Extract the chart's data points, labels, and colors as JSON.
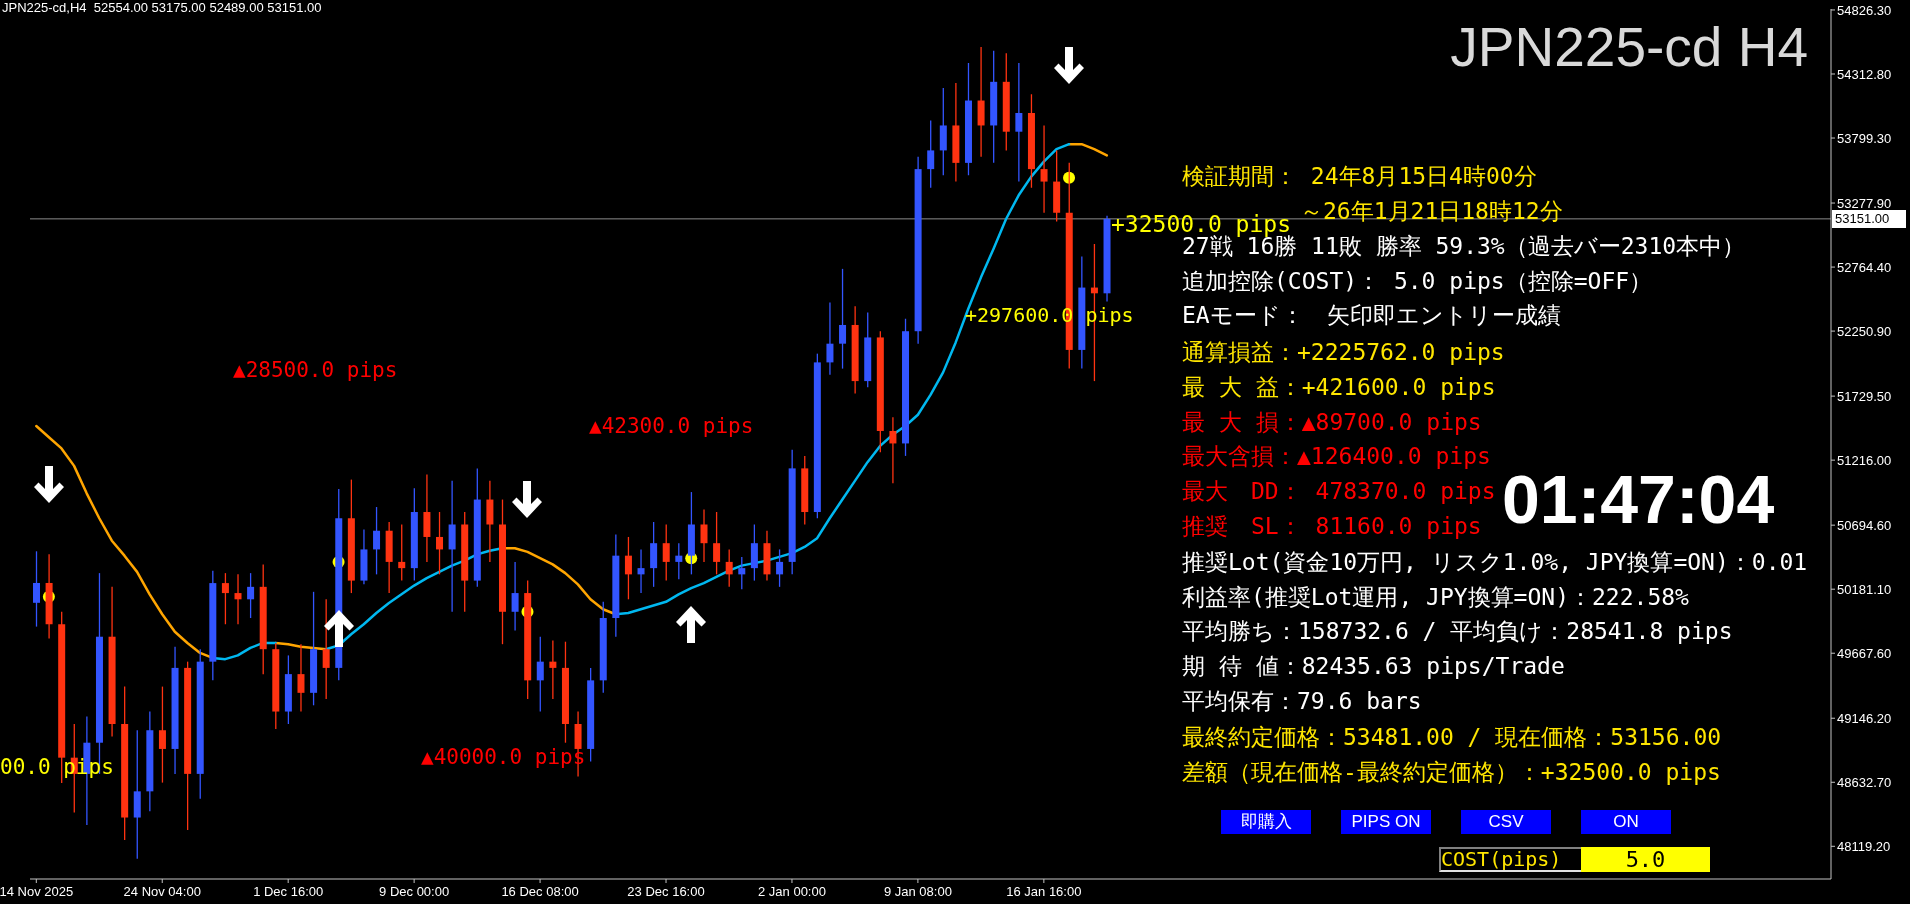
{
  "chart_data": {
    "type": "candlestick",
    "title": "JPN225-cd H4",
    "subtitle": "JPN225-cd,H4  52554.00 53175.00 52489.00 53151.00",
    "categories": [
      "14 Nov 2025",
      null,
      null,
      null,
      null,
      null,
      null,
      null,
      null,
      null,
      "24 Nov 04:00",
      null,
      null,
      null,
      null,
      null,
      null,
      null,
      null,
      null,
      "1 Dec 16:00",
      null,
      null,
      null,
      null,
      null,
      null,
      null,
      null,
      null,
      "9 Dec 00:00",
      null,
      null,
      null,
      null,
      null,
      null,
      null,
      null,
      null,
      "16 Dec 08:00",
      null,
      null,
      null,
      null,
      null,
      null,
      null,
      null,
      null,
      "23 Dec 16:00",
      null,
      null,
      null,
      null,
      null,
      null,
      null,
      null,
      null,
      "2 Jan 00:00",
      null,
      null,
      null,
      null,
      null,
      null,
      null,
      null,
      null,
      "9 Jan 08:00",
      null,
      null,
      null,
      null,
      null,
      null,
      null,
      null,
      null,
      "16 Jan 16:00",
      null,
      null,
      null,
      null,
      null,
      null,
      null,
      null,
      null,
      null,
      null,
      null,
      null,
      null,
      null,
      null,
      null,
      null,
      null,
      null,
      null,
      null,
      null,
      null,
      null,
      null,
      null,
      null,
      null,
      null,
      null,
      null,
      null,
      null,
      null,
      null,
      null,
      null,
      null,
      null,
      null,
      null,
      null,
      null,
      null,
      null,
      null,
      null,
      null,
      null,
      null,
      null,
      null,
      null,
      null,
      null,
      null,
      null,
      null,
      null,
      null,
      null
    ],
    "ohlc": [
      [
        50072,
        50485,
        49881,
        50231
      ],
      [
        50231,
        50461,
        49786,
        49900
      ],
      [
        49900,
        50000,
        48627,
        48830
      ],
      [
        48830,
        49100,
        48390,
        48700
      ],
      [
        48700,
        49160,
        48290,
        48950
      ],
      [
        48950,
        50310,
        48700,
        49800
      ],
      [
        49800,
        50200,
        49000,
        49100
      ],
      [
        49100,
        49400,
        48170,
        48350
      ],
      [
        48350,
        49050,
        48020,
        48560
      ],
      [
        48560,
        49200,
        48400,
        49050
      ],
      [
        49050,
        49400,
        48630,
        48900
      ],
      [
        48900,
        49720,
        48700,
        49550
      ],
      [
        49550,
        49600,
        48250,
        48700
      ],
      [
        48700,
        49700,
        48500,
        49600
      ],
      [
        49600,
        50330,
        49450,
        50230
      ],
      [
        50230,
        50310,
        49900,
        50150
      ],
      [
        50150,
        50300,
        49900,
        50100
      ],
      [
        50100,
        50310,
        49950,
        50200
      ],
      [
        50200,
        50380,
        49500,
        49700
      ],
      [
        49700,
        49750,
        49060,
        49200
      ],
      [
        49200,
        49650,
        49100,
        49500
      ],
      [
        49500,
        49740,
        49200,
        49350
      ],
      [
        49350,
        50160,
        49250,
        49700
      ],
      [
        49700,
        50100,
        49300,
        49550
      ],
      [
        49550,
        50985,
        49450,
        50750
      ],
      [
        50750,
        51060,
        50150,
        50250
      ],
      [
        50250,
        50660,
        50220,
        50500
      ],
      [
        50500,
        50840,
        50300,
        50650
      ],
      [
        50650,
        50720,
        50150,
        50400
      ],
      [
        50400,
        50700,
        50250,
        50350
      ],
      [
        50350,
        50990,
        50250,
        50800
      ],
      [
        50800,
        51100,
        50400,
        50600
      ],
      [
        50600,
        50800,
        50300,
        50500
      ],
      [
        50500,
        51050,
        50000,
        50700
      ],
      [
        50700,
        50800,
        50000,
        50250
      ],
      [
        50250,
        51150,
        50200,
        50900
      ],
      [
        50900,
        51050,
        50400,
        50700
      ],
      [
        50700,
        50900,
        49740,
        50000
      ],
      [
        50000,
        50400,
        49850,
        50150
      ],
      [
        50150,
        50250,
        49300,
        49450
      ],
      [
        49450,
        49800,
        49200,
        49600
      ],
      [
        49600,
        49770,
        49300,
        49550
      ],
      [
        49550,
        49760,
        48950,
        49100
      ],
      [
        49100,
        49200,
        48680,
        48900
      ],
      [
        48900,
        49550,
        48800,
        49450
      ],
      [
        49450,
        50080,
        49350,
        49950
      ],
      [
        49950,
        50620,
        49800,
        50450
      ],
      [
        50450,
        50600,
        50100,
        50300
      ],
      [
        50300,
        50500,
        50150,
        50350
      ],
      [
        50350,
        50720,
        50200,
        50550
      ],
      [
        50550,
        50700,
        50250,
        50400
      ],
      [
        50400,
        50550,
        50260,
        50450
      ],
      [
        50450,
        50960,
        50300,
        50700
      ],
      [
        50700,
        50820,
        50400,
        50550
      ],
      [
        50550,
        50800,
        50300,
        50400
      ],
      [
        50400,
        50500,
        50200,
        50300
      ],
      [
        50300,
        50440,
        50180,
        50350
      ],
      [
        50350,
        50700,
        50250,
        50550
      ],
      [
        50550,
        50650,
        50250,
        50300
      ],
      [
        50300,
        50500,
        50200,
        50400
      ],
      [
        50400,
        51300,
        50300,
        51150
      ],
      [
        51150,
        51250,
        50700,
        50800
      ],
      [
        50800,
        52070,
        50750,
        52000
      ],
      [
        52000,
        52480,
        51900,
        52150
      ],
      [
        52150,
        52750,
        51950,
        52300
      ],
      [
        52300,
        52450,
        51750,
        51850
      ],
      [
        51850,
        52400,
        51800,
        52200
      ],
      [
        52200,
        52250,
        51280,
        51450
      ],
      [
        51450,
        51560,
        51030,
        51350
      ],
      [
        51350,
        52350,
        51250,
        52250
      ],
      [
        52250,
        53650,
        52150,
        53550
      ],
      [
        53550,
        53940,
        53400,
        53700
      ],
      [
        53700,
        54200,
        53500,
        53900
      ],
      [
        53900,
        54240,
        53450,
        53600
      ],
      [
        53600,
        54400,
        53500,
        54100
      ],
      [
        54100,
        54530,
        53650,
        53900
      ],
      [
        53900,
        54500,
        53600,
        54250
      ],
      [
        54250,
        54480,
        53700,
        53850
      ],
      [
        53850,
        54400,
        53450,
        54000
      ],
      [
        54000,
        54150,
        53400,
        53550
      ],
      [
        53550,
        53900,
        53200,
        53450
      ],
      [
        53450,
        53700,
        53130,
        53200
      ],
      [
        53200,
        53600,
        51950,
        52100
      ],
      [
        52100,
        52850,
        51950,
        52600
      ],
      [
        52600,
        52950,
        51850,
        52554
      ],
      [
        52554,
        53175,
        52489,
        53151
      ],
      null,
      null,
      null,
      null,
      null,
      null,
      null,
      null,
      null,
      null,
      null,
      null,
      null,
      null,
      null,
      null,
      null,
      null,
      null,
      null,
      null,
      null,
      null,
      null,
      null,
      null,
      null,
      null,
      null,
      null,
      null,
      null,
      null,
      null,
      null,
      null,
      null,
      null,
      null,
      null,
      null,
      null,
      null,
      null,
      null,
      null,
      null,
      null,
      null,
      null,
      null,
      null,
      null,
      null,
      null,
      null,
      null
    ],
    "colors": [
      "#3355ff",
      "#ff3311",
      "#ff3311",
      "#ff3311",
      "#3355ff",
      "#3355ff",
      "#ff3311",
      "#ff3311",
      "#3355ff",
      "#3355ff",
      "#ff3311",
      "#3355ff",
      "#ff3311",
      "#3355ff",
      "#3355ff",
      "#ff3311",
      "#ff3311",
      "#3355ff",
      "#ff3311",
      "#ff3311",
      "#3355ff",
      "#ff3311",
      "#3355ff",
      "#ff3311",
      "#3355ff",
      "#ff3311",
      "#3355ff",
      "#3355ff",
      "#ff3311",
      "#ff3311",
      "#3355ff",
      "#ff3311",
      "#ff3311",
      "#3355ff",
      "#ff3311",
      "#3355ff",
      "#ff3311",
      "#ff3311",
      "#3355ff",
      "#ff3311",
      "#3355ff",
      "#ff3311",
      "#ff3311",
      "#ff3311",
      "#3355ff",
      "#3355ff",
      "#3355ff",
      "#ff3311",
      "#3355ff",
      "#3355ff",
      "#ff3311",
      "#3355ff",
      "#3355ff",
      "#ff3311",
      "#ff3311",
      "#ff3311",
      "#3355ff",
      "#3355ff",
      "#ff3311",
      "#3355ff",
      "#3355ff",
      "#ff3311",
      "#3355ff",
      "#3355ff",
      "#3355ff",
      "#ff3311",
      "#3355ff",
      "#ff3311",
      "#ff3311",
      "#3355ff",
      "#3355ff",
      "#3355ff",
      "#3355ff",
      "#ff3311",
      "#3355ff",
      "#ff3311",
      "#3355ff",
      "#ff3311",
      "#3355ff",
      "#ff3311",
      "#ff3311",
      "#ff3311",
      "#ff3311",
      "#3355ff",
      "#ff3311",
      "#3355ff",
      null,
      null,
      null,
      null,
      null,
      null,
      null,
      null,
      null,
      null,
      null,
      null,
      null,
      null,
      null,
      null,
      null,
      null,
      null,
      null,
      null,
      null,
      null,
      null,
      null,
      null,
      null,
      null,
      null,
      null,
      null,
      null,
      null,
      null,
      null,
      null,
      null,
      null,
      null,
      null,
      null,
      null,
      null,
      null,
      null,
      null,
      null,
      null,
      null,
      null,
      null,
      null,
      null,
      null,
      null,
      null,
      null
    ],
    "series": [
      {
        "type": "line",
        "color": "#ffa500",
        "values": [
          51490,
          51400,
          51310,
          51170,
          50950,
          50750,
          50570,
          50450,
          50320,
          50140,
          49980,
          49840,
          49750,
          49670,
          49630,
          null,
          null,
          null,
          null,
          49750,
          49740,
          49720,
          49710,
          49700,
          null,
          null,
          null,
          null,
          null,
          null,
          null,
          null,
          null,
          null,
          null,
          null,
          null,
          50510,
          50510,
          50480,
          50430,
          50380,
          50310,
          50220,
          50100,
          50020,
          49980,
          null,
          null,
          null,
          null,
          null,
          null,
          null,
          null,
          null,
          null,
          null,
          null,
          null,
          null,
          null,
          null,
          null,
          null,
          null,
          null,
          null,
          null,
          null,
          null,
          null,
          null,
          null,
          null,
          null,
          null,
          null,
          null,
          null,
          null,
          null,
          53750,
          53750,
          53710,
          53660,
          null,
          null,
          null,
          null,
          null,
          null,
          null,
          null,
          null,
          null,
          null,
          null,
          null,
          null,
          null,
          null,
          null,
          null,
          null,
          null,
          null,
          null,
          null,
          null,
          null,
          null,
          null,
          null,
          null,
          null,
          null,
          null,
          null,
          null,
          null,
          null,
          null,
          null,
          null,
          null,
          null,
          null,
          null,
          null,
          null,
          null,
          null,
          null,
          null,
          null,
          null,
          null,
          null,
          null,
          null,
          null,
          null
        ]
      },
      {
        "type": "line",
        "color": "#00b8f0",
        "values": [
          null,
          null,
          null,
          null,
          null,
          null,
          null,
          null,
          null,
          null,
          null,
          null,
          null,
          null,
          49630,
          49620,
          49650,
          49710,
          49750,
          49750,
          null,
          null,
          null,
          49700,
          49730,
          49820,
          49900,
          49990,
          50070,
          50140,
          50210,
          50270,
          50320,
          50370,
          50410,
          50460,
          50490,
          50510,
          null,
          null,
          null,
          null,
          null,
          null,
          null,
          null,
          49980,
          49990,
          50020,
          50050,
          50080,
          50140,
          50190,
          50230,
          50280,
          50330,
          50370,
          50390,
          50410,
          50440,
          50470,
          50520,
          50590,
          50750,
          50900,
          51050,
          51200,
          51330,
          51420,
          51490,
          51580,
          51740,
          51920,
          52160,
          52430,
          52680,
          52910,
          53150,
          53340,
          53490,
          53610,
          53710,
          53750,
          null,
          null,
          null,
          null,
          null,
          null,
          null,
          null,
          null,
          null,
          null,
          null,
          null,
          null,
          null,
          null,
          null,
          null,
          null,
          null,
          null,
          null,
          null,
          null,
          null,
          null,
          null,
          null,
          null,
          null,
          null,
          null,
          null,
          null,
          null,
          null,
          null,
          null,
          null,
          null,
          null,
          null,
          null,
          null,
          null,
          null,
          null,
          null,
          null,
          null,
          null,
          null,
          null,
          null,
          null,
          null,
          null,
          null,
          null,
          null
        ]
      },
      {
        "type": "scatter",
        "color": "#ffff00",
        "marker": "circle",
        "values": [
          null,
          50120,
          null,
          null,
          null,
          null,
          null,
          null,
          null,
          null,
          null,
          null,
          null,
          null,
          null,
          null,
          null,
          null,
          null,
          null,
          null,
          null,
          null,
          null,
          50400,
          null,
          null,
          null,
          null,
          null,
          null,
          null,
          null,
          null,
          null,
          null,
          null,
          null,
          null,
          50000,
          null,
          null,
          null,
          null,
          null,
          null,
          null,
          null,
          null,
          null,
          null,
          null,
          50430,
          null,
          null,
          null,
          null,
          null,
          null,
          null,
          null,
          null,
          null,
          null,
          null,
          null,
          null,
          null,
          null,
          null,
          null,
          null,
          null,
          null,
          null,
          null,
          null,
          null,
          null,
          null,
          null,
          null,
          53480,
          null,
          null,
          null,
          null,
          null,
          null,
          null,
          null,
          null,
          null,
          null,
          null,
          null,
          null,
          null,
          null,
          null,
          null,
          null,
          null,
          null,
          null,
          null,
          null,
          null,
          null,
          null,
          null,
          null,
          null,
          null,
          null,
          null,
          null,
          null,
          null,
          null,
          null,
          null,
          null,
          null,
          null,
          null,
          null,
          null,
          null,
          null,
          null,
          null,
          null,
          null,
          null,
          null,
          null,
          null,
          null,
          null,
          null,
          null,
          null
        ]
      }
    ],
    "ylim": [
      47857,
      54834
    ],
    "yticks": [
      {
        "value": 48119.2,
        "label": "48119.20"
      },
      {
        "value": 48632.7,
        "label": "48632.70"
      },
      {
        "value": 49146.2,
        "label": "49146.20"
      },
      {
        "value": 49667.6,
        "label": "49667.60"
      },
      {
        "value": 50181.1,
        "label": "50181.10"
      },
      {
        "value": 50694.6,
        "label": "50694.60"
      },
      {
        "value": 51216,
        "label": "51216.00"
      },
      {
        "value": 51729.5,
        "label": "51729.50"
      },
      {
        "value": 52250.9,
        "label": "52250.90"
      },
      {
        "value": 52764.4,
        "label": "52764.40"
      },
      {
        "value": 53277.9,
        "label": "53277.90"
      },
      {
        "value": 53799.3,
        "label": "53799.30"
      },
      {
        "value": 54312.8,
        "label": "54312.80"
      },
      {
        "value": 54826.3,
        "label": "54826.30"
      }
    ],
    "ref_lines": [
      {
        "axis": "y",
        "value": 53151,
        "label": "53151.00",
        "color": "#8c8c8c"
      }
    ],
    "annotations": [
      "00.0 pips",
      "▲28500.0 pips",
      "▲42300.0 pips",
      "▲40000.0 pips",
      "+297600.0 pips",
      "+32500.0 pips",
      "検証期間： 24年8月15日4時00分",
      "～26年1月21日18時12分",
      "27戦 16勝 11敗 勝率 59.3%（過去バー2310本中）",
      "追加控除(COST)： 5.0 pips（控除=OFF）",
      "EAモード：　矢印即エントリー成績",
      "通算損益：+2225762.0 pips",
      "最 大 益：+421600.0 pips",
      "最 大 損：▲89700.0 pips",
      "最大含損：▲126400.0 pips",
      "最大　DD： 478370.0 pips",
      "推奨　SL： 81160.0 pips",
      "推奨Lot(資金10万円, リスク1.0%, JPY換算=ON)：0.01",
      "利益率(推奨Lot運用, JPY換算=ON)：222.58%",
      "平均勝ち：158732.6 / 平均負け：28541.8 pips",
      "期 待 値：82435.63 pips/Trade",
      "平均保有：79.6 bars",
      "最終約定価格：53481.00 / 現在価格：53156.00",
      "差額（現在価格-最終約定価格）：+32500.0 pips",
      "01:47:04",
      "即購入",
      "PIPS ON",
      "CSV",
      "ON",
      "COST(pips)",
      "5.0"
    ]
  }
}
